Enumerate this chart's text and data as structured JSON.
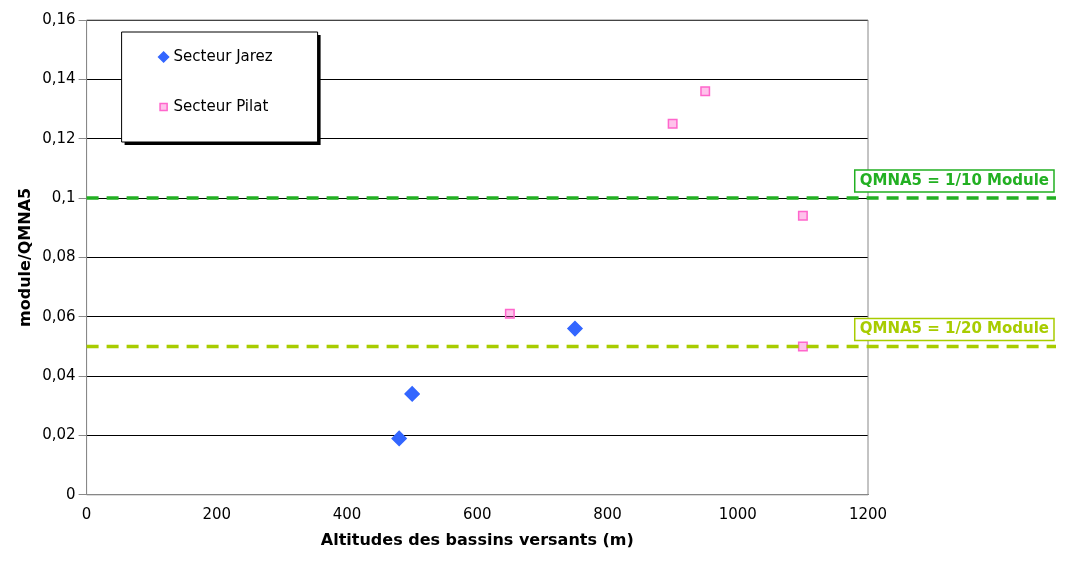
{
  "chart_data": {
    "type": "scatter",
    "xlabel": "Altitudes des bassins versants (m)",
    "ylabel": "module/QMNA5",
    "xlim": [
      0,
      1200
    ],
    "xticks": [
      0,
      200,
      400,
      600,
      800,
      1000,
      1200
    ],
    "ylim": [
      0,
      0.16
    ],
    "yticks": [
      {
        "value": 0,
        "label": "0"
      },
      {
        "value": 0.02,
        "label": "0,02"
      },
      {
        "value": 0.04,
        "label": "0,04"
      },
      {
        "value": 0.06,
        "label": "0,06"
      },
      {
        "value": 0.08,
        "label": "0,08"
      },
      {
        "value": 0.1,
        "label": "0,1"
      },
      {
        "value": 0.12,
        "label": "0,12"
      },
      {
        "value": 0.14,
        "label": "0,14"
      },
      {
        "value": 0.16,
        "label": "0,16"
      }
    ],
    "grid": "y",
    "legend": "top left",
    "series": [
      {
        "name": "Secteur Jarez",
        "color": "#3366ff",
        "marker": "diamond",
        "x": [
          480,
          500,
          750
        ],
        "values": [
          0.019,
          0.034,
          0.056
        ]
      },
      {
        "name": "Secteur Pilat",
        "color": "#ff66cc",
        "marker": "square",
        "x": [
          650,
          900,
          950,
          1100,
          1100
        ],
        "values": [
          0.061,
          0.125,
          0.136,
          0.094,
          0.05
        ]
      }
    ],
    "ref_lines": [
      {
        "axis": "y",
        "value": 0.1,
        "label": "QMNA5 = 1/10 Module",
        "color": "#22b022",
        "line_style": "dashed"
      },
      {
        "axis": "y",
        "value": 0.05,
        "label": "QMNA5 = 1/20 Module",
        "color": "#a8cc00",
        "line_style": "dashed"
      }
    ]
  }
}
